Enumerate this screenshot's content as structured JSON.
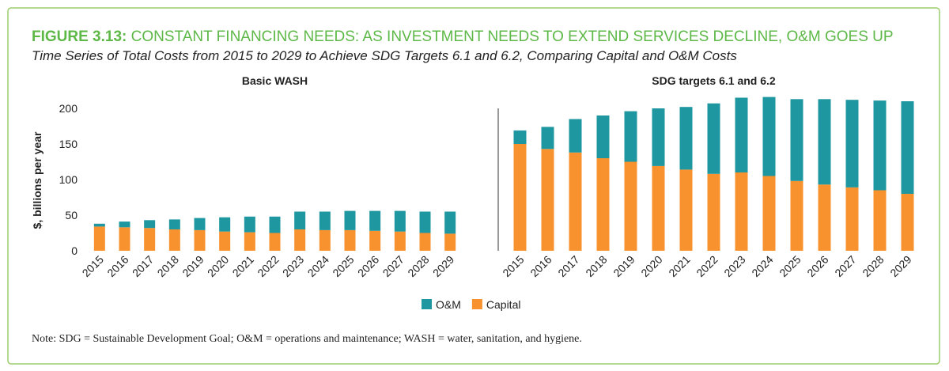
{
  "header": {
    "figure_label": "FIGURE 3.13:",
    "title": "CONSTANT FINANCING NEEDS: AS INVESTMENT NEEDS TO EXTEND SERVICES DECLINE, O&M GOES UP",
    "subtitle": "Time Series of Total Costs from 2015 to 2029 to Achieve SDG Targets 6.1 and 6.2, Comparing Capital and O&M Costs"
  },
  "chart_data": [
    {
      "type": "bar",
      "stacked": true,
      "title": "Basic WASH",
      "ylabel": "$, billions per year",
      "categories": [
        "2015",
        "2016",
        "2017",
        "2018",
        "2019",
        "2020",
        "2021",
        "2022",
        "2023",
        "2024",
        "2025",
        "2026",
        "2027",
        "2028",
        "2029"
      ],
      "series": [
        {
          "name": "Capital",
          "color": "#f7922e",
          "values": [
            34,
            33,
            32,
            30,
            29,
            27,
            26,
            25,
            30,
            29,
            29,
            28,
            27,
            25,
            24
          ]
        },
        {
          "name": "O&M",
          "color": "#1e97a0",
          "values": [
            4,
            8,
            11,
            14,
            17,
            20,
            22,
            23,
            25,
            26,
            27,
            28,
            29,
            30,
            31
          ]
        }
      ],
      "ylim": [
        0,
        220
      ],
      "yticks": [
        0,
        50,
        100,
        150,
        200
      ]
    },
    {
      "type": "bar",
      "stacked": true,
      "title": "SDG targets 6.1 and 6.2",
      "categories": [
        "2015",
        "2016",
        "2017",
        "2018",
        "2019",
        "2020",
        "2021",
        "2022",
        "2023",
        "2024",
        "2025",
        "2026",
        "2027",
        "2028",
        "2029"
      ],
      "series": [
        {
          "name": "Capital",
          "color": "#f7922e",
          "values": [
            150,
            143,
            138,
            130,
            125,
            119,
            114,
            108,
            110,
            105,
            98,
            93,
            89,
            85,
            80
          ]
        },
        {
          "name": "O&M",
          "color": "#1e97a0",
          "values": [
            19,
            31,
            47,
            60,
            71,
            81,
            88,
            99,
            105,
            111,
            115,
            120,
            123,
            126,
            130
          ]
        }
      ],
      "ylim": [
        0,
        220
      ]
    }
  ],
  "note": "Note: SDG = Sustainable Development Goal; O&M = operations and maintenance; WASH = water, sanitation, and hygiene."
}
